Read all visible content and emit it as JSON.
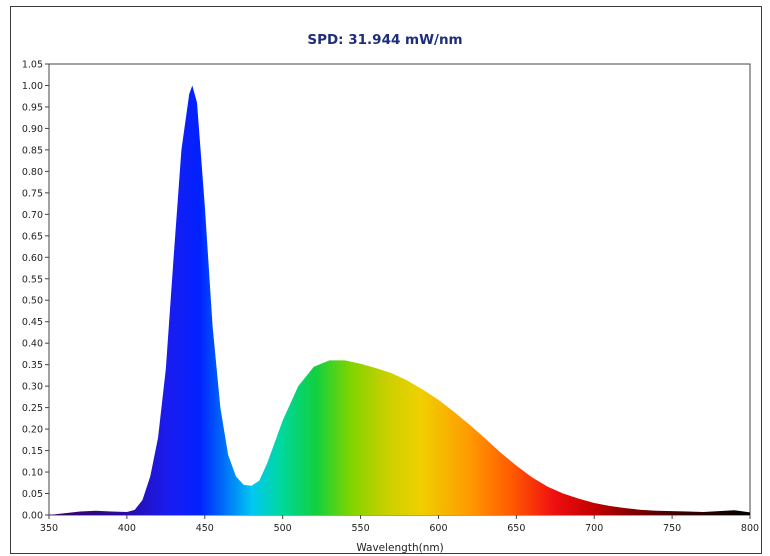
{
  "chart_data": {
    "type": "area",
    "title": "SPD: 31.944 mW/nm",
    "xlabel": "Wavelength(nm)",
    "ylabel": "",
    "xlim": [
      350,
      800
    ],
    "ylim": [
      0,
      1.05
    ],
    "x_ticks": [
      "350",
      "400",
      "450",
      "500",
      "550",
      "600",
      "650",
      "700",
      "750",
      "800"
    ],
    "y_ticks": [
      "0.00",
      "0.05",
      "0.10",
      "0.15",
      "0.20",
      "0.25",
      "0.30",
      "0.35",
      "0.40",
      "0.45",
      "0.50",
      "0.55",
      "0.60",
      "0.65",
      "0.70",
      "0.75",
      "0.80",
      "0.85",
      "0.90",
      "0.95",
      "1.00",
      "1.05"
    ],
    "grid": false,
    "fill": "spectral",
    "x": [
      350,
      360,
      370,
      380,
      390,
      400,
      405,
      410,
      415,
      420,
      425,
      430,
      435,
      440,
      442,
      445,
      450,
      455,
      460,
      465,
      470,
      475,
      480,
      485,
      490,
      495,
      500,
      505,
      510,
      520,
      530,
      540,
      550,
      560,
      570,
      580,
      590,
      600,
      610,
      620,
      630,
      640,
      650,
      660,
      670,
      680,
      690,
      700,
      710,
      720,
      730,
      740,
      750,
      760,
      770,
      780,
      790,
      800
    ],
    "y": [
      0.0,
      0.004,
      0.008,
      0.01,
      0.008,
      0.007,
      0.012,
      0.035,
      0.09,
      0.18,
      0.34,
      0.6,
      0.85,
      0.98,
      1.0,
      0.96,
      0.72,
      0.44,
      0.25,
      0.14,
      0.09,
      0.07,
      0.068,
      0.08,
      0.12,
      0.17,
      0.22,
      0.26,
      0.3,
      0.345,
      0.36,
      0.36,
      0.352,
      0.342,
      0.33,
      0.313,
      0.292,
      0.268,
      0.24,
      0.21,
      0.178,
      0.145,
      0.115,
      0.088,
      0.066,
      0.05,
      0.038,
      0.028,
      0.021,
      0.016,
      0.012,
      0.01,
      0.009,
      0.008,
      0.007,
      0.009,
      0.011,
      0.006
    ]
  }
}
